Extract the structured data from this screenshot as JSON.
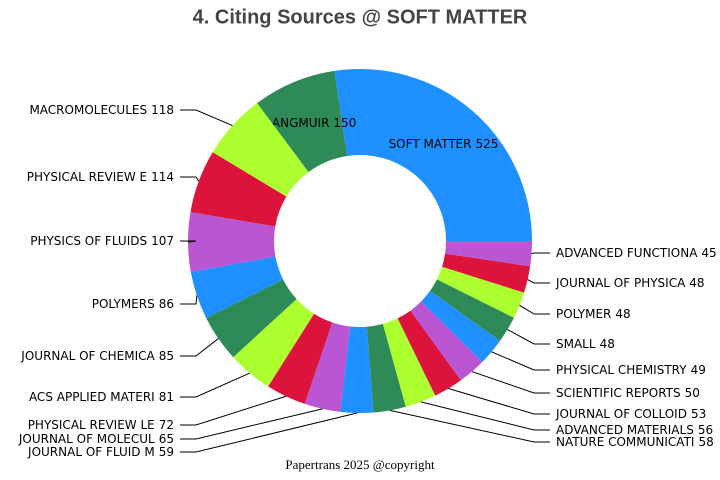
{
  "chart_data": {
    "type": "donut",
    "title": "4. Citing Sources @ SOFT MATTER",
    "footer": "Papertrans 2025 @copyright",
    "categories": [
      "SOFT MATTER",
      "LANGMUIR",
      "MACROMOLECULES",
      "PHYSICAL REVIEW E",
      "PHYSICS OF FLUIDS",
      "POLYMERS",
      "JOURNAL OF CHEMICA",
      "ACS APPLIED MATERI",
      "PHYSICAL REVIEW LE",
      "JOURNAL OF MOLECUL",
      "JOURNAL OF FLUID M",
      "NATURE COMMUNICATI",
      "ADVANCED MATERIALS",
      "JOURNAL OF COLLOID",
      "SCIENTIFIC REPORTS",
      "PHYSICAL CHEMISTRY",
      "SMALL",
      "POLYMER",
      "JOURNAL OF PHYSICA",
      "ADVANCED FUNCTIONA"
    ],
    "values": [
      525,
      150,
      118,
      114,
      107,
      86,
      85,
      81,
      72,
      65,
      59,
      58,
      56,
      53,
      50,
      49,
      48,
      48,
      48,
      45
    ],
    "colors": [
      "#1e90ff",
      "#2e8b57",
      "#adff2f",
      "#dc143c",
      "#ba55d3"
    ]
  }
}
